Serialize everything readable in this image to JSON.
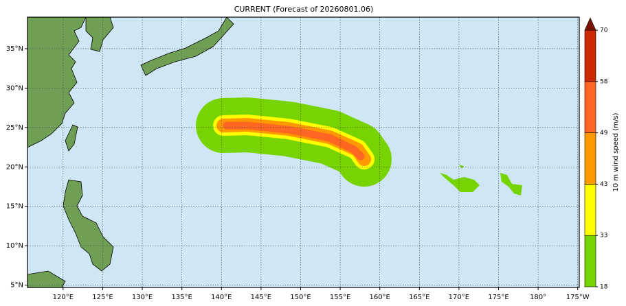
{
  "title": "CURRENT (Forecast of 20260801.06)",
  "map": {
    "lonlim": [
      115.5,
      185.2
    ],
    "latlim": [
      4.7,
      39
    ],
    "lon_ticks": [
      {
        "value": 120,
        "label": "120°E"
      },
      {
        "value": 125,
        "label": "125°E"
      },
      {
        "value": 130,
        "label": "130°E"
      },
      {
        "value": 135,
        "label": "135°E"
      },
      {
        "value": 140,
        "label": "140°E"
      },
      {
        "value": 145,
        "label": "145°E"
      },
      {
        "value": 150,
        "label": "150°E"
      },
      {
        "value": 155,
        "label": "155°E"
      },
      {
        "value": 160,
        "label": "160°E"
      },
      {
        "value": 165,
        "label": "165°E"
      },
      {
        "value": 170,
        "label": "170°E"
      },
      {
        "value": 175,
        "label": "175°E"
      },
      {
        "value": 180,
        "label": "180°"
      },
      {
        "value": 185,
        "label": "175°W"
      }
    ],
    "lat_ticks": [
      {
        "value": 5,
        "label": "5°N"
      },
      {
        "value": 10,
        "label": "10°N"
      },
      {
        "value": 15,
        "label": "15°N"
      },
      {
        "value": 20,
        "label": "20°N"
      },
      {
        "value": 25,
        "label": "25°N"
      },
      {
        "value": 30,
        "label": "30°N"
      },
      {
        "value": 35,
        "label": "35°N"
      }
    ],
    "grid": true
  },
  "colorbar": {
    "label": "10 m wind speed (m/s)",
    "ticks": [
      18,
      33,
      43,
      49,
      58,
      70
    ],
    "colors": [
      "#77d400",
      "#ffff00",
      "#ff9900",
      "#ff6622",
      "#cc2a00"
    ],
    "extend_color": "#7a1200"
  }
}
